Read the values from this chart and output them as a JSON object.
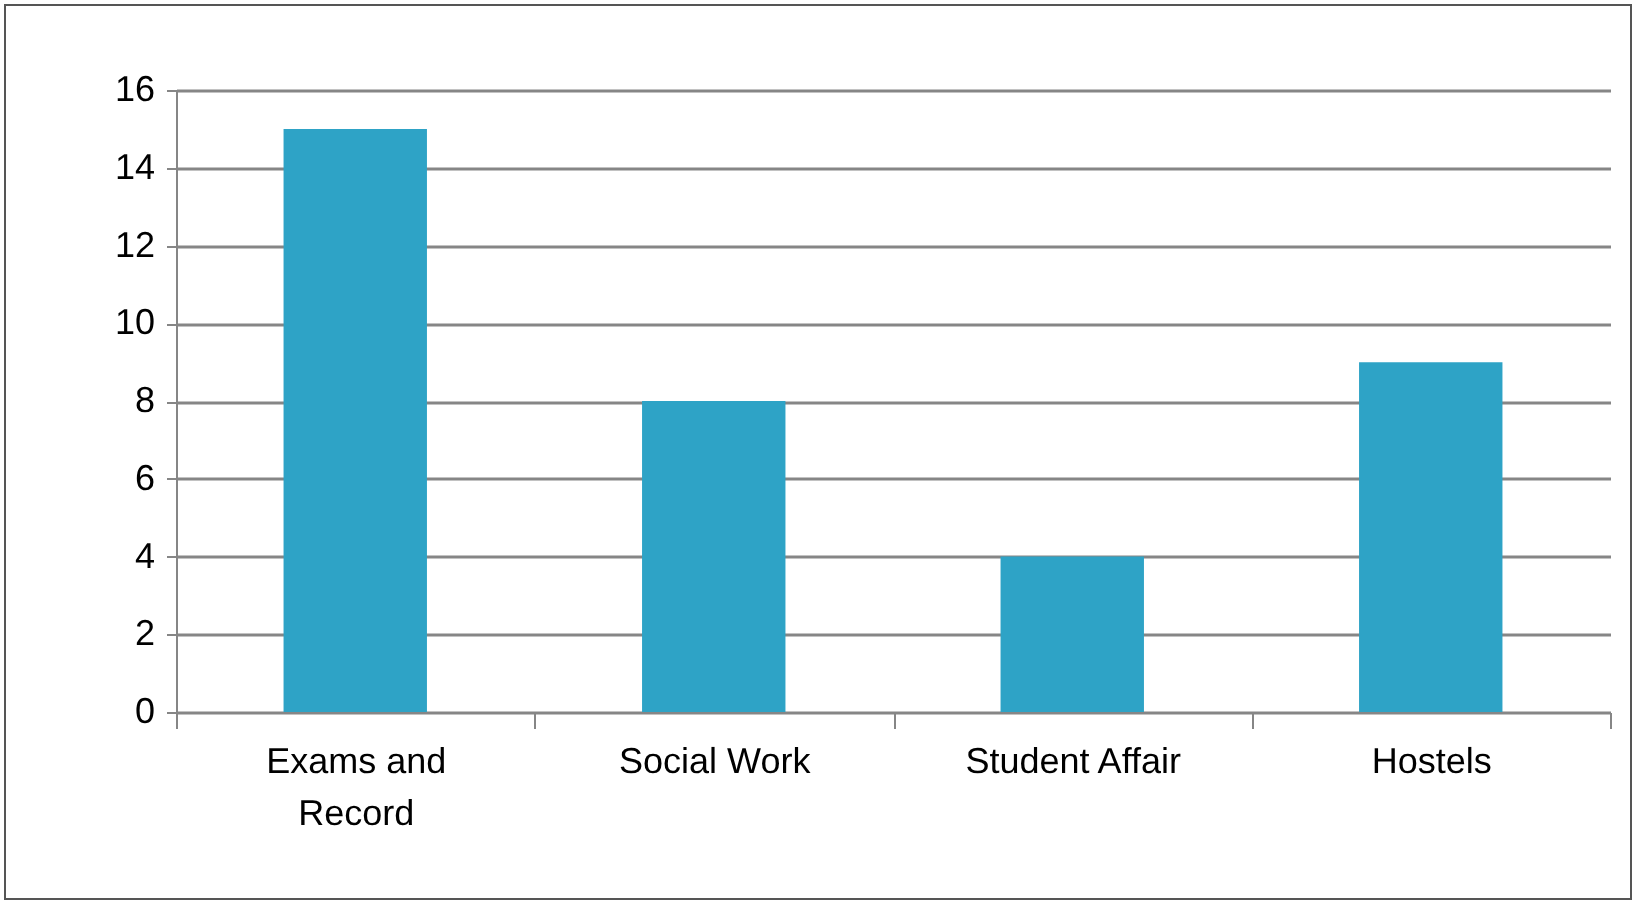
{
  "chart_data": {
    "type": "bar",
    "categories": [
      "Exams and Record",
      "Social Work",
      "Student Affair",
      "Hostels"
    ],
    "values": [
      15,
      8,
      4,
      9
    ],
    "color": "#2ea3c6",
    "ylim": [
      0,
      16
    ],
    "yticks": [
      0,
      2,
      4,
      6,
      8,
      10,
      12,
      14,
      16
    ],
    "grid": true
  }
}
